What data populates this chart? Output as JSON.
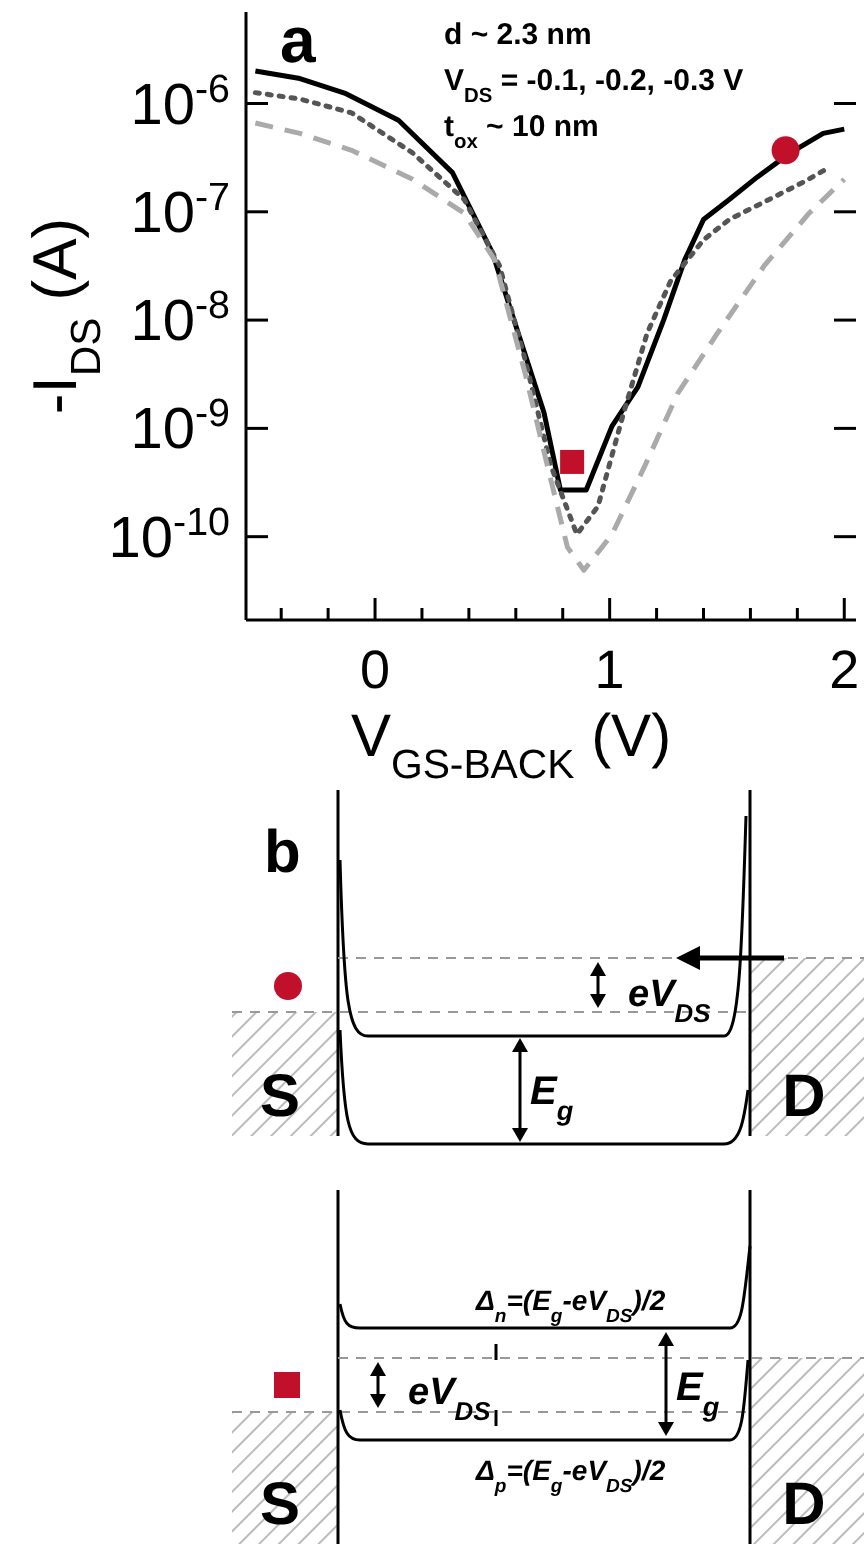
{
  "chart_data": [
    {
      "type": "line",
      "xlabel": "V$_{GS-BACK}$ (V)",
      "ylabel": "-I$_{DS}$ (A)",
      "log": "y",
      "marker": "none",
      "annotations": [
        "a",
        "d ~ 2.3 nm",
        "V$_{DS}$ = -0.1, -0.2, -0.3 V",
        "t$_{ox}$ ~ 10 nm"
      ],
      "xlim": [
        -0.55,
        2.05
      ],
      "ylim": [
        1.7e-11,
        7e-06
      ],
      "xticks": [
        {
          "value": -0.4,
          "label": null
        },
        {
          "value": -0.2,
          "label": null
        },
        0,
        {
          "value": 0.2,
          "label": null
        },
        {
          "value": 0.4,
          "label": null
        },
        {
          "value": 0.6,
          "label": null
        },
        {
          "value": 0.8,
          "label": null
        },
        1,
        {
          "value": 1.2,
          "label": null
        },
        {
          "value": 1.4,
          "label": null
        },
        {
          "value": 1.6,
          "label": null
        },
        {
          "value": 1.8,
          "label": null
        },
        2
      ],
      "yticks": [
        {
          "value": 1e-10,
          "label": "10$^{-10}$"
        },
        {
          "value": 1e-09,
          "label": "10$^{-9}$"
        },
        {
          "value": 1e-08,
          "label": "10$^{-8}$"
        },
        {
          "value": 1e-07,
          "label": "10$^{-7}$"
        },
        {
          "value": 1e-06,
          "label": "10$^{-6}$"
        }
      ],
      "series": [
        {
          "color": "#000000",
          "line_style": "solid",
          "x": [
            -0.51,
            -0.32,
            -0.13,
            0.1,
            0.33,
            0.5,
            0.61,
            0.72,
            0.79,
            0.9,
            1.01,
            1.12,
            1.23,
            1.32,
            1.4,
            1.51,
            1.63,
            1.77,
            1.91,
            2.0
          ],
          "values": [
            2e-06,
            1.7e-06,
            1.25e-06,
            7e-07,
            2.3e-07,
            4.2e-08,
            7.6e-09,
            1.4e-09,
            2.7e-10,
            2.7e-10,
            1.05e-09,
            2.4e-09,
            1e-08,
            3.6e-08,
            8.5e-08,
            1.3e-07,
            2.1e-07,
            3.5e-07,
            5.3e-07,
            5.8e-07
          ]
        },
        {
          "color": "#555555",
          "line_style": "dotted",
          "x": [
            -0.51,
            -0.32,
            -0.1,
            0.16,
            0.38,
            0.53,
            0.64,
            0.75,
            0.86,
            0.95,
            1.06,
            1.16,
            1.26,
            1.4,
            1.51,
            1.68,
            1.83,
            1.94
          ],
          "values": [
            1.26e-06,
            1.1e-06,
            8.2e-07,
            3.5e-07,
            1.3e-07,
            3.2e-08,
            4.3e-09,
            4.5e-10,
            1.05e-10,
            1.9e-10,
            1.4e-09,
            7.6e-09,
            2.3e-08,
            5.5e-08,
            8.5e-08,
            1.3e-07,
            1.9e-07,
            2.6e-07
          ]
        },
        {
          "color": "#aaaaaa",
          "line_style": "dashed",
          "x": [
            -0.51,
            -0.32,
            -0.1,
            0.16,
            0.38,
            0.51,
            0.64,
            0.75,
            0.82,
            0.89,
            1.01,
            1.15,
            1.29,
            1.46,
            1.66,
            1.85,
            2.0
          ],
          "values": [
            6.6e-07,
            5.3e-07,
            3.7e-07,
            2e-07,
            9.7e-08,
            3.6e-08,
            3.2e-09,
            3.3e-10,
            8e-11,
            4.9e-11,
            1.05e-10,
            4.5e-10,
            2.1e-09,
            7.6e-09,
            3.2e-08,
            9.7e-08,
            2e-07
          ]
        },
        {
          "type": "scatter",
          "marker": "circle",
          "color": "#c0102a",
          "x": [
            1.75
          ],
          "values": [
            3.7e-07
          ]
        },
        {
          "type": "scatter",
          "marker": "square",
          "color": "#c0102a",
          "x": [
            0.84
          ],
          "values": [
            4.9e-10
          ]
        }
      ]
    },
    {
      "type": "other",
      "annotations": [
        "b",
        "S",
        "D",
        "E$_{g}$",
        "eV$_{DS}$",
        "S",
        "D",
        "eV$_{DS}$",
        "E$_{g}$",
        "Δ$_{n}$=(E$_{g}$-eV$_{DS}$)/2",
        "Δ$_{p}$=(E$_{g}$-eV$_{DS}$)/2"
      ]
    }
  ]
}
